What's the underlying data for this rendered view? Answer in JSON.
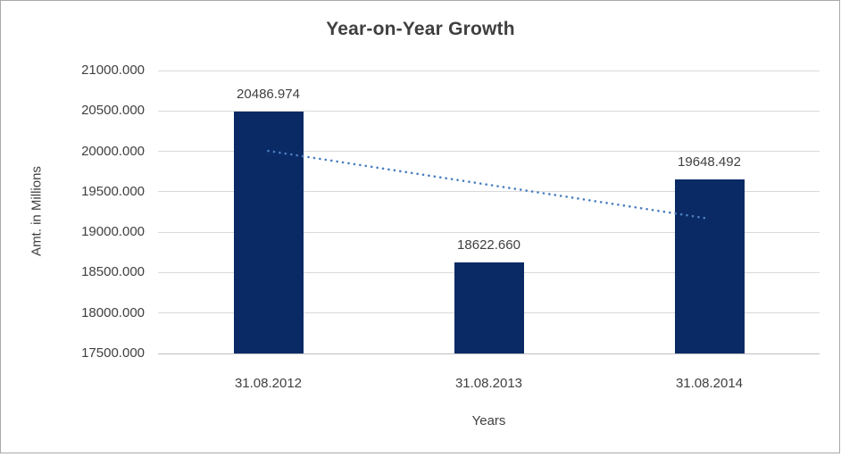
{
  "chart": {
    "title": "Year-on-Year Growth",
    "y_axis_title": "Amt. in Millions",
    "x_axis_title": "Years"
  },
  "chart_data": {
    "type": "bar",
    "title": "Year-on-Year Growth",
    "xlabel": "Years",
    "ylabel": "Amt. in Millions",
    "categories": [
      "31.08.2012",
      "31.08.2013",
      "31.08.2014"
    ],
    "values": [
      20486.974,
      18622.66,
      19648.492
    ],
    "data_labels": [
      "20486.974",
      "18622.660",
      "19648.492"
    ],
    "y_tick_labels": [
      "21000.000",
      "20500.000",
      "20000.000",
      "19500.000",
      "19000.000",
      "18500.000",
      "18000.000",
      "17500.000"
    ],
    "y_tick_values": [
      21000,
      20500,
      20000,
      19500,
      19000,
      18500,
      18000,
      17500
    ],
    "ylim": [
      17500,
      21000
    ],
    "y_tick_step": 500,
    "grid": true,
    "legend": "none",
    "bar_color": "#0a2a66",
    "gridline_color": "#d9d9d9",
    "axis_line_color": "#bfbfbf",
    "text_color": "#404040",
    "title_color": "#3f3f3f",
    "background_color": "#ffffff",
    "trendline": {
      "type": "linear",
      "style": "dotted",
      "color": "#4a7ebf"
    }
  }
}
